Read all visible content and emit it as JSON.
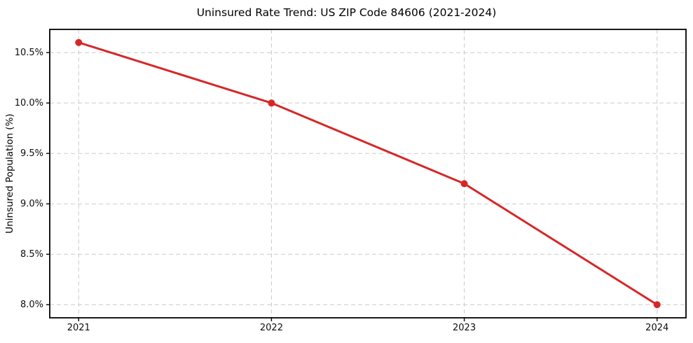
{
  "chart_data": {
    "type": "line",
    "title": "Uninsured Rate Trend: US ZIP Code 84606 (2021-2024)",
    "xlabel": "",
    "ylabel": "Uninsured Population (%)",
    "series": [
      {
        "name": "Uninsured rate",
        "x": [
          2021,
          2022,
          2023,
          2024
        ],
        "values": [
          10.6,
          10.0,
          9.2,
          8.0
        ]
      }
    ],
    "xticks": [
      2021,
      2022,
      2023,
      2024
    ],
    "xtick_labels": [
      "2021",
      "2022",
      "2023",
      "2024"
    ],
    "yticks": [
      8.0,
      8.5,
      9.0,
      9.5,
      10.0,
      10.5
    ],
    "ytick_labels": [
      "8.0%",
      "8.5%",
      "9.0%",
      "9.5%",
      "10.0%",
      "10.5%"
    ],
    "xlim": [
      2020.85,
      2024.15
    ],
    "ylim": [
      7.87,
      10.73
    ],
    "grid": true,
    "legend_position": "none",
    "line_color": "#d62728",
    "marker": "circle",
    "marker_color": "#d62728",
    "grid_color": "#cbcbcb",
    "frame_color": "#000000",
    "background_color": "#ffffff"
  }
}
